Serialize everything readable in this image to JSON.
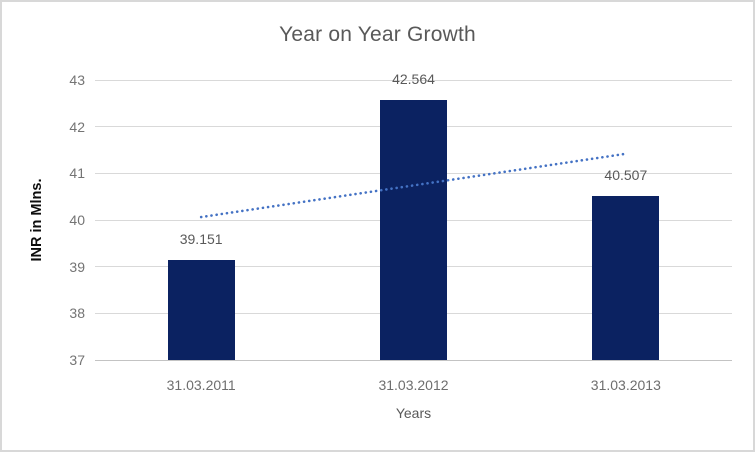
{
  "chart": {
    "title": "Year on Year Growth",
    "x_axis_title": "Years",
    "y_axis_title": "INR in Mlns."
  },
  "chart_data": {
    "type": "bar",
    "title": "Year on Year Growth",
    "categories": [
      "31.03.2011",
      "31.03.2012",
      "31.03.2013"
    ],
    "values": [
      39.151,
      42.564,
      40.507
    ],
    "data_labels": [
      "39.151",
      "42.564",
      "40.507"
    ],
    "xlabel": "Years",
    "ylabel": "INR in Mlns.",
    "ylim": [
      37,
      43
    ],
    "y_ticks": [
      37,
      38,
      39,
      40,
      41,
      42,
      43
    ],
    "grid": true,
    "legend": "none",
    "bar_color": "#0b2261",
    "gridline_color": "#d9d9d9",
    "axis_line_color": "#c3c3c3",
    "text_color": "#595959",
    "tick_label_color": "#747474",
    "trendline": {
      "type": "linear",
      "style": "dotted",
      "color": "#4472c4",
      "start_value": 40.063,
      "end_value": 41.419
    }
  }
}
